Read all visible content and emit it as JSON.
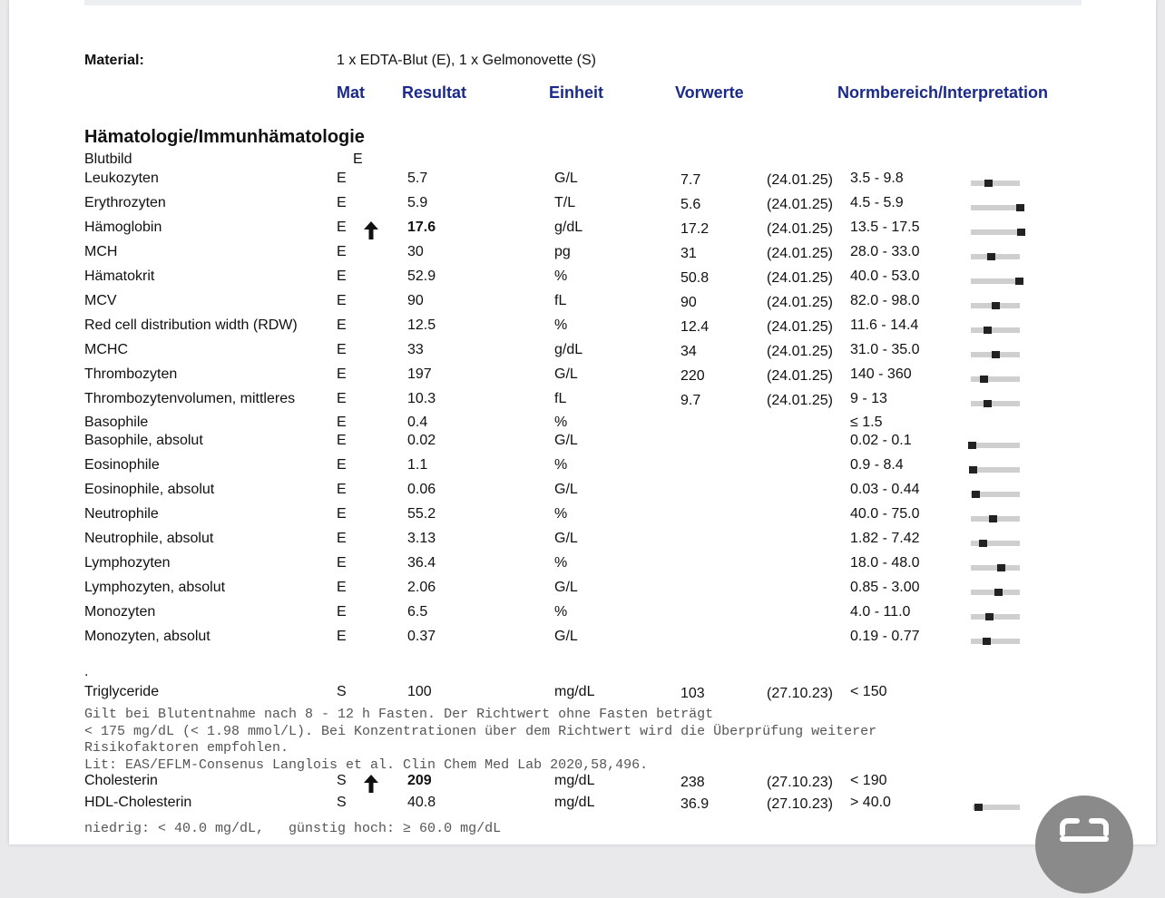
{
  "material": {
    "label": "Material:",
    "value": "1 x EDTA-Blut (E), 1 x Gelmonovette (S)"
  },
  "columns": [
    "Mat",
    "Resultat",
    "Einheit",
    "Vorwerte",
    "Normbereich/Interpretation"
  ],
  "section": {
    "title": "Hämatologie/Immunhämatologie",
    "group": {
      "name": "Blutbild",
      "mat": "E"
    },
    "rows": [
      {
        "name": "Leukozyten",
        "mat": "E",
        "result": "5.7",
        "unit": "G/L",
        "prev": "7.7",
        "prev_date": "(24.01.25)",
        "range": "3.5 - 9.8"
      },
      {
        "name": "Erythrozyten",
        "mat": "E",
        "result": "5.9",
        "unit": "T/L",
        "prev": "5.6",
        "prev_date": "(24.01.25)",
        "range": "4.5 - 5.9"
      },
      {
        "name": "Hämoglobin",
        "mat": "E",
        "high": true,
        "result": "17.6",
        "unit": "g/dL",
        "prev": "17.2",
        "prev_date": "(24.01.25)",
        "range": "13.5 - 17.5"
      },
      {
        "name": "MCH",
        "mat": "E",
        "result": "30",
        "unit": "pg",
        "prev": "31",
        "prev_date": "(24.01.25)",
        "range": "28.0 - 33.0"
      },
      {
        "name": "Hämatokrit",
        "mat": "E",
        "result": "52.9",
        "unit": "%",
        "prev": "50.8",
        "prev_date": "(24.01.25)",
        "range": "40.0 - 53.0"
      },
      {
        "name": "MCV",
        "mat": "E",
        "result": "90",
        "unit": "fL",
        "prev": "90",
        "prev_date": "(24.01.25)",
        "range": "82.0 - 98.0"
      },
      {
        "name": "Red cell distribution width (RDW)",
        "mat": "E",
        "result": "12.5",
        "unit": "%",
        "prev": "12.4",
        "prev_date": "(24.01.25)",
        "range": "11.6 - 14.4"
      },
      {
        "name": "MCHC",
        "mat": "E",
        "result": "33",
        "unit": "g/dL",
        "prev": "34",
        "prev_date": "(24.01.25)",
        "range": "31.0 - 35.0"
      },
      {
        "name": "Thrombozyten",
        "mat": "E",
        "result": "197",
        "unit": "G/L",
        "prev": "220",
        "prev_date": "(24.01.25)",
        "range": "140 - 360"
      },
      {
        "name": "Thrombozytenvolumen, mittleres",
        "mat": "E",
        "result": "10.3",
        "unit": "fL",
        "prev": "9.7",
        "prev_date": "(24.01.25)",
        "range": "9 - 13"
      },
      {
        "name": "Basophile",
        "mat": "E",
        "result": "0.4",
        "unit": "%",
        "range": "≤ 1.5"
      },
      {
        "name": "Basophile, absolut",
        "mat": "E",
        "result": "0.02",
        "unit": "G/L",
        "range": "0.02 - 0.1"
      },
      {
        "name": "Eosinophile",
        "mat": "E",
        "result": "1.1",
        "unit": "%",
        "range": "0.9 - 8.4"
      },
      {
        "name": "Eosinophile, absolut",
        "mat": "E",
        "result": "0.06",
        "unit": "G/L",
        "range": "0.03 - 0.44"
      },
      {
        "name": "Neutrophile",
        "mat": "E",
        "result": "55.2",
        "unit": "%",
        "range": "40.0 - 75.0"
      },
      {
        "name": "Neutrophile, absolut",
        "mat": "E",
        "result": "3.13",
        "unit": "G/L",
        "range": "1.82 - 7.42"
      },
      {
        "name": "Lymphozyten",
        "mat": "E",
        "result": "36.4",
        "unit": "%",
        "range": "18.0 - 48.0"
      },
      {
        "name": "Lymphozyten, absolut",
        "mat": "E",
        "result": "2.06",
        "unit": "G/L",
        "range": "0.85 - 3.00"
      },
      {
        "name": "Monozyten",
        "mat": "E",
        "result": "6.5",
        "unit": "%",
        "range": "4.0 - 11.0"
      },
      {
        "name": "Monozyten, absolut",
        "mat": "E",
        "result": "0.37",
        "unit": "G/L",
        "range": "0.19 - 0.77"
      }
    ]
  },
  "separator": ".",
  "chemistry": [
    {
      "name": "Triglyceride",
      "mat": "S",
      "result": "100",
      "unit": "mg/dL",
      "prev": "103",
      "prev_date": "(27.10.23)",
      "range": "< 150",
      "note": [
        "Gilt bei Blutentnahme nach 8 - 12 h Fasten. Der Richtwert ohne Fasten beträgt",
        "< 175 mg/dL (< 1.98 mmol/L). Bei Konzentrationen über dem Richtwert wird die Überprüfung weiterer",
        "Risikofaktoren empfohlen.",
        "Lit: EAS/EFLM-Consenus Langlois et al. Clin Chem Med Lab 2020,58,496."
      ]
    },
    {
      "name": "Cholesterin",
      "mat": "S",
      "high": true,
      "result": "209",
      "unit": "mg/dL",
      "prev": "238",
      "prev_date": "(27.10.23)",
      "range": "< 190"
    },
    {
      "name": "HDL-Cholesterin",
      "mat": "S",
      "result": "40.8",
      "unit": "mg/dL",
      "prev": "36.9",
      "prev_date": "(27.10.23)",
      "range": "> 40.0",
      "note": [
        "niedrig: < 40.0 mg/dL,   günstig hoch: ≥ 60.0 mg/dL"
      ]
    }
  ]
}
